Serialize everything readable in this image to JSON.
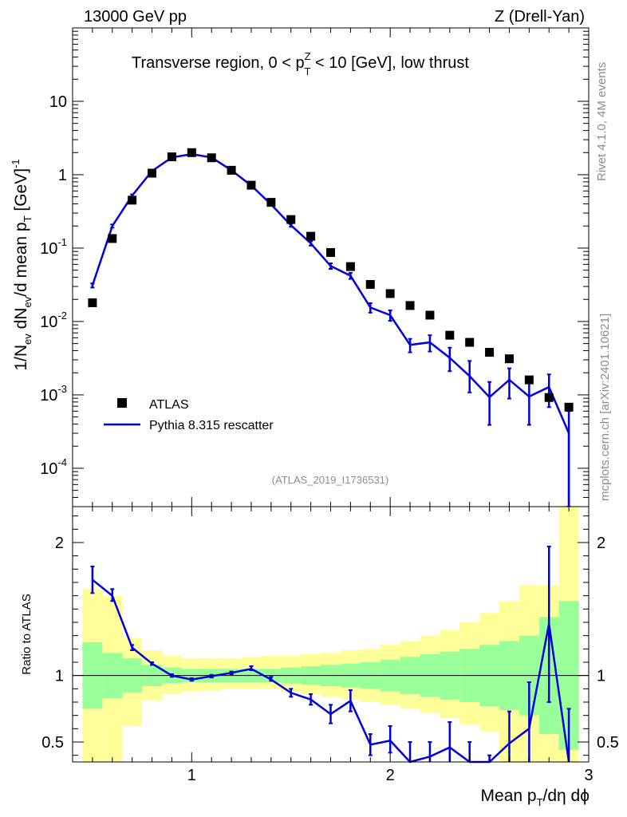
{
  "header": {
    "energy_label": "13000 GeV pp",
    "process_label": "Z (Drell-Yan)",
    "rivet_label": "Rivet 4.1.0,  4M events",
    "mcplots_label": "mcplots.cern.ch [arXiv:2401.10621]",
    "analysis_label": "(ATLAS_2019_I1736531)"
  },
  "chart_data": [
    {
      "type": "scatter",
      "panel": "main",
      "title": "Transverse region, 0 < pT^Z < 10 [GeV], low thrust",
      "title_parts": {
        "pre": "Transverse region, 0 < p",
        "sup": "Z",
        "sub": "T",
        "post": " < 10 [GeV], low thrust"
      },
      "ylabel_parts": {
        "a": "1/N",
        "a_sub": "ev",
        "b": " dN",
        "b_sub": "ev",
        "c": "/d mean p",
        "c_sub": "T",
        "d": " [GeV]",
        "d_sup": "-1"
      },
      "yscale": "log",
      "xlim": [
        0.4,
        3.0
      ],
      "ylim": [
        3e-05,
        100
      ],
      "yticks": [
        {
          "v": 0.0001,
          "base": "10",
          "exp": "-4"
        },
        {
          "v": 0.001,
          "base": "10",
          "exp": "-3"
        },
        {
          "v": 0.01,
          "base": "10",
          "exp": "-2"
        },
        {
          "v": 0.1,
          "base": "10",
          "exp": "-1"
        },
        {
          "v": 1,
          "base": "1",
          "exp": ""
        },
        {
          "v": 10,
          "base": "10",
          "exp": ""
        }
      ],
      "legend": {
        "position": "bottom-left",
        "entries": [
          "ATLAS",
          "Pythia 8.315 rescatter"
        ]
      },
      "series": [
        {
          "name": "ATLAS",
          "style": "square-marker",
          "color": "#000000",
          "x": [
            0.5,
            0.6,
            0.7,
            0.8,
            0.9,
            1.0,
            1.1,
            1.2,
            1.3,
            1.4,
            1.5,
            1.6,
            1.7,
            1.8,
            1.9,
            2.0,
            2.1,
            2.2,
            2.3,
            2.4,
            2.5,
            2.6,
            2.7,
            2.8,
            2.9
          ],
          "y": [
            0.018,
            0.135,
            0.45,
            1.05,
            1.75,
            2.0,
            1.7,
            1.15,
            0.72,
            0.42,
            0.245,
            0.145,
            0.087,
            0.056,
            0.032,
            0.024,
            0.0165,
            0.0122,
            0.0065,
            0.0052,
            0.0038,
            0.0031,
            0.0016,
            0.00092,
            0.00068
          ]
        },
        {
          "name": "Pythia 8.315 rescatter",
          "style": "line-with-errors",
          "color": "#0000dd",
          "x": [
            0.5,
            0.6,
            0.7,
            0.8,
            0.9,
            1.0,
            1.1,
            1.2,
            1.3,
            1.4,
            1.5,
            1.6,
            1.7,
            1.8,
            1.9,
            2.0,
            2.1,
            2.2,
            2.3,
            2.4,
            2.5,
            2.6,
            2.7,
            2.8,
            2.9
          ],
          "y": [
            0.031,
            0.2,
            0.52,
            1.12,
            1.72,
            1.9,
            1.72,
            1.15,
            0.71,
            0.395,
            0.205,
            0.116,
            0.057,
            0.042,
            0.0155,
            0.0122,
            0.0048,
            0.0052,
            0.0032,
            0.0018,
            0.00093,
            0.0016,
            0.00095,
            0.00128,
            0.0003
          ],
          "err_lo": [
            0.029,
            0.19,
            0.5,
            1.09,
            1.68,
            1.86,
            1.68,
            1.12,
            0.69,
            0.38,
            0.195,
            0.108,
            0.052,
            0.038,
            0.0132,
            0.0102,
            0.0038,
            0.0039,
            0.0021,
            0.00108,
            0.00039,
            0.00089,
            0.00039,
            0.00068,
            3e-05
          ],
          "err_hi": [
            0.033,
            0.21,
            0.54,
            1.15,
            1.76,
            1.94,
            1.76,
            1.18,
            0.73,
            0.41,
            0.215,
            0.124,
            0.062,
            0.046,
            0.0178,
            0.0142,
            0.0058,
            0.0065,
            0.0044,
            0.0029,
            0.0015,
            0.0023,
            0.0016,
            0.0019,
            0.0006
          ]
        }
      ]
    },
    {
      "type": "line",
      "panel": "ratio",
      "ylabel": "Ratio to ATLAS",
      "xlabel_parts": {
        "a": "Mean p",
        "a_sub": "T",
        "b": "/dη dϕ"
      },
      "xlim": [
        0.4,
        3.0
      ],
      "ylim": [
        0.35,
        2.27
      ],
      "xticks": [
        {
          "v": 1,
          "label": "1"
        },
        {
          "v": 2,
          "label": "2"
        },
        {
          "v": 3,
          "label": "3"
        }
      ],
      "yticks": [
        {
          "v": 0.5,
          "label": "0.5"
        },
        {
          "v": 1,
          "label": "1"
        },
        {
          "v": 2,
          "label": "2"
        }
      ],
      "reference_line": 1,
      "bin_edges": [
        0.45,
        0.55,
        0.65,
        0.75,
        0.85,
        0.95,
        1.05,
        1.15,
        1.25,
        1.35,
        1.45,
        1.55,
        1.65,
        1.75,
        1.85,
        1.95,
        2.05,
        2.15,
        2.25,
        2.35,
        2.45,
        2.55,
        2.65,
        2.75,
        2.85,
        2.95
      ],
      "band_total": {
        "color": "#ffff99",
        "lo": [
          0.35,
          0.35,
          0.62,
          0.81,
          0.86,
          0.88,
          0.89,
          0.9,
          0.9,
          0.9,
          0.88,
          0.86,
          0.84,
          0.82,
          0.8,
          0.78,
          0.75,
          0.72,
          0.68,
          0.63,
          0.58,
          0.35,
          0.35,
          0.35,
          0.35
        ],
        "hi": [
          1.65,
          1.6,
          1.28,
          1.19,
          1.15,
          1.13,
          1.13,
          1.13,
          1.14,
          1.15,
          1.15,
          1.16,
          1.17,
          1.19,
          1.2,
          1.23,
          1.26,
          1.3,
          1.34,
          1.4,
          1.47,
          1.56,
          1.68,
          1.68,
          2.27
        ]
      },
      "band_stat": {
        "color": "#99ff99",
        "lo": [
          0.75,
          0.83,
          0.87,
          0.92,
          0.94,
          0.95,
          0.95,
          0.95,
          0.95,
          0.95,
          0.94,
          0.93,
          0.92,
          0.91,
          0.9,
          0.88,
          0.86,
          0.84,
          0.82,
          0.8,
          0.77,
          0.74,
          0.7,
          0.56,
          0.44
        ],
        "hi": [
          1.25,
          1.17,
          1.13,
          1.08,
          1.06,
          1.05,
          1.05,
          1.05,
          1.05,
          1.05,
          1.06,
          1.07,
          1.08,
          1.09,
          1.1,
          1.12,
          1.14,
          1.16,
          1.18,
          1.2,
          1.23,
          1.26,
          1.3,
          1.44,
          1.56
        ]
      },
      "series": [
        {
          "name": "Pythia 8.315 rescatter",
          "color": "#0000dd",
          "x": [
            0.5,
            0.6,
            0.7,
            0.8,
            0.9,
            1.0,
            1.1,
            1.2,
            1.3,
            1.4,
            1.5,
            1.6,
            1.7,
            1.8,
            1.9,
            2.0,
            2.1,
            2.2,
            2.3,
            2.4,
            2.5,
            2.6,
            2.7,
            2.8,
            2.9
          ],
          "y": [
            1.72,
            1.6,
            1.21,
            1.09,
            1.0,
            0.97,
            0.995,
            1.02,
            1.05,
            0.97,
            0.87,
            0.82,
            0.71,
            0.81,
            0.48,
            0.51,
            0.3,
            0.39,
            0.46,
            0.3,
            0.25,
            0.49,
            0.6,
            1.39,
            0.3
          ],
          "err_lo": [
            1.62,
            1.56,
            1.19,
            1.08,
            0.99,
            0.96,
            0.985,
            1.01,
            1.04,
            0.96,
            0.84,
            0.78,
            0.64,
            0.73,
            0.4,
            0.42,
            0.1,
            0.28,
            0.27,
            0.1,
            0.1,
            0.28,
            0.25,
            0.8,
            0.1
          ],
          "err_hi": [
            1.82,
            1.65,
            1.23,
            1.1,
            1.01,
            0.98,
            1.005,
            1.03,
            1.07,
            0.99,
            0.9,
            0.86,
            0.78,
            0.89,
            0.56,
            0.62,
            0.5,
            0.5,
            0.65,
            0.5,
            0.4,
            0.73,
            0.95,
            1.97,
            0.75
          ]
        }
      ]
    }
  ]
}
